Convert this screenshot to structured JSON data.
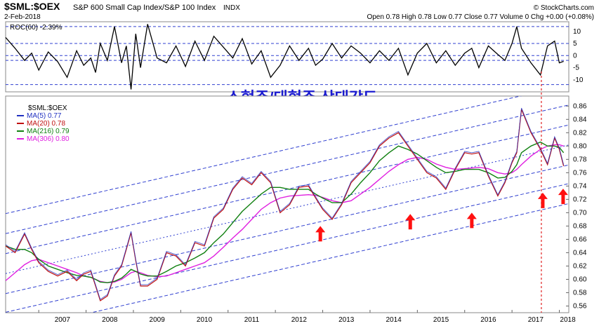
{
  "header": {
    "symbol": "$SML:$OEX",
    "description": "S&P 600 Small Cap Index/S&P 100 Index",
    "exchange": "INDX",
    "date": "2-Feb-2018",
    "quote": "Open 0.78  High 0.78  Low 0.77  Close 0.77  Volume 0  Chg +0.00 (+0.08%)",
    "copyright": "© StockCharts.com"
  },
  "annotation": "소형주/대형주 상대강도",
  "roc_panel": {
    "label": "ROC(60) -2.39%",
    "ylim": [
      -15,
      14
    ],
    "ticks": [
      "10",
      "5",
      "0",
      "-5",
      "-10"
    ],
    "tick_values": [
      10,
      5,
      0,
      -5,
      -10
    ],
    "dashed_levels": [
      12,
      5,
      0,
      -2,
      -12
    ]
  },
  "main_panel": {
    "legend_title": "$SML:$OEX",
    "legend": [
      {
        "text": "MA(5) 0.77",
        "color": "#2030c0"
      },
      {
        "text": "MA(20) 0.78",
        "color": "#c01010"
      },
      {
        "text": "MA(216) 0.79",
        "color": "#108010"
      },
      {
        "text": "MA(306) 0.80",
        "color": "#e020e0"
      }
    ],
    "ylim": [
      0.55,
      0.875
    ],
    "ticks": [
      "0.86",
      "0.84",
      "0.82",
      "0.80",
      "0.78",
      "0.76",
      "0.74",
      "0.72",
      "0.70",
      "0.68",
      "0.66",
      "0.64",
      "0.62",
      "0.60",
      "0.58",
      "0.56"
    ],
    "tick_values": [
      0.86,
      0.84,
      0.82,
      0.8,
      0.78,
      0.76,
      0.74,
      0.72,
      0.7,
      0.68,
      0.66,
      0.64,
      0.62,
      0.6,
      0.58,
      0.56
    ]
  },
  "x_axis": {
    "labels": [
      "2007",
      "2008",
      "2009",
      "2010",
      "2011",
      "2012",
      "2013",
      "2014",
      "2015",
      "2016",
      "2017",
      "2018"
    ],
    "values": [
      2007,
      2008,
      2009,
      2010,
      2011,
      2012,
      2013,
      2014,
      2015,
      2016,
      2017,
      2018
    ],
    "xlim": [
      2006.3,
      2018.2
    ]
  },
  "chart_data": {
    "type": "line",
    "x": [
      2006.3,
      2006.5,
      2006.7,
      2006.85,
      2007.0,
      2007.2,
      2007.4,
      2007.6,
      2007.8,
      2007.95,
      2008.1,
      2008.2,
      2008.3,
      2008.45,
      2008.6,
      2008.75,
      2008.85,
      2008.95,
      2009.05,
      2009.15,
      2009.3,
      2009.5,
      2009.7,
      2009.9,
      2010.1,
      2010.3,
      2010.5,
      2010.7,
      2010.9,
      2011.1,
      2011.3,
      2011.5,
      2011.7,
      2011.9,
      2012.1,
      2012.3,
      2012.5,
      2012.7,
      2012.85,
      2013.0,
      2013.2,
      2013.4,
      2013.6,
      2013.8,
      2014.0,
      2014.2,
      2014.4,
      2014.6,
      2014.8,
      2015.0,
      2015.2,
      2015.4,
      2015.6,
      2015.8,
      2016.0,
      2016.15,
      2016.3,
      2016.5,
      2016.7,
      2016.85,
      2017.0,
      2017.1,
      2017.2,
      2017.4,
      2017.6,
      2017.75,
      2017.9,
      2018.0,
      2018.09
    ],
    "series": [
      {
        "values": [
          0.65,
          0.64,
          0.668,
          0.645,
          0.625,
          0.612,
          0.605,
          0.612,
          0.598,
          0.608,
          0.612,
          0.59,
          0.568,
          0.575,
          0.605,
          0.62,
          0.645,
          0.67,
          0.628,
          0.59,
          0.59,
          0.6,
          0.64,
          0.635,
          0.62,
          0.655,
          0.65,
          0.692,
          0.705,
          0.735,
          0.752,
          0.742,
          0.76,
          0.745,
          0.7,
          0.712,
          0.738,
          0.74,
          0.722,
          0.705,
          0.69,
          0.712,
          0.745,
          0.76,
          0.775,
          0.8,
          0.812,
          0.82,
          0.8,
          0.78,
          0.76,
          0.752,
          0.735,
          0.765,
          0.79,
          0.788,
          0.79,
          0.755,
          0.725,
          0.745,
          0.775,
          0.79,
          0.855,
          0.82,
          0.795,
          0.772,
          0.812,
          0.795,
          0.77
        ]
      },
      {
        "name": "MA(216)",
        "values": [
          0.65,
          0.645,
          0.645,
          0.64,
          0.63,
          0.62,
          0.615,
          0.61,
          0.606,
          0.605,
          0.603,
          0.6,
          0.596,
          0.595,
          0.597,
          0.602,
          0.608,
          0.615,
          0.612,
          0.608,
          0.605,
          0.605,
          0.612,
          0.62,
          0.625,
          0.632,
          0.64,
          0.655,
          0.668,
          0.685,
          0.702,
          0.715,
          0.728,
          0.738,
          0.738,
          0.735,
          0.735,
          0.735,
          0.728,
          0.722,
          0.715,
          0.715,
          0.728,
          0.745,
          0.76,
          0.778,
          0.79,
          0.8,
          0.795,
          0.788,
          0.778,
          0.768,
          0.76,
          0.762,
          0.765,
          0.765,
          0.765,
          0.76,
          0.752,
          0.753,
          0.762,
          0.772,
          0.79,
          0.8,
          0.806,
          0.8,
          0.8,
          0.798,
          0.79
        ]
      },
      {
        "name": "MA(306)",
        "values": [
          0.598,
          0.61,
          0.622,
          0.628,
          0.63,
          0.625,
          0.62,
          0.615,
          0.61,
          0.605,
          0.603,
          0.6,
          0.597,
          0.595,
          0.596,
          0.6,
          0.605,
          0.61,
          0.612,
          0.61,
          0.606,
          0.604,
          0.605,
          0.61,
          0.615,
          0.62,
          0.625,
          0.635,
          0.648,
          0.662,
          0.675,
          0.69,
          0.705,
          0.715,
          0.722,
          0.725,
          0.726,
          0.727,
          0.726,
          0.723,
          0.718,
          0.715,
          0.718,
          0.728,
          0.738,
          0.75,
          0.762,
          0.772,
          0.78,
          0.783,
          0.78,
          0.773,
          0.768,
          0.765,
          0.766,
          0.767,
          0.768,
          0.766,
          0.76,
          0.758,
          0.76,
          0.765,
          0.772,
          0.785,
          0.795,
          0.8,
          0.802,
          0.802,
          0.8
        ]
      }
    ],
    "roc_values": [
      7.5,
      3.0,
      -2.0,
      1.0,
      -6.0,
      1.5,
      -2.5,
      -9.0,
      2.0,
      -4.0,
      -1.0,
      -7.0,
      5.0,
      -2.0,
      12.0,
      -3.0,
      4.0,
      -14.0,
      9.0,
      -5.0,
      13.0,
      -1.0,
      -3.0,
      4.0,
      -4.5,
      6.0,
      -2.0,
      8.0,
      3.5,
      -1.0,
      7.0,
      -3.5,
      2.0,
      -9.0,
      -4.0,
      4.0,
      -2.0,
      3.0,
      -4.0,
      -1.5,
      5.0,
      -1.0,
      4.0,
      1.0,
      -3.0,
      2.0,
      -2.0,
      3.0,
      -8.0,
      1.0,
      5.0,
      -3.0,
      2.0,
      -4.0,
      1.0,
      3.0,
      -5.0,
      4.0,
      0.5,
      -2.0,
      5.0,
      12.0,
      3.0,
      -3.0,
      -8.0,
      4.0,
      6.0,
      -3.0,
      -2.39
    ],
    "xlabel": "",
    "ylabel": ""
  }
}
